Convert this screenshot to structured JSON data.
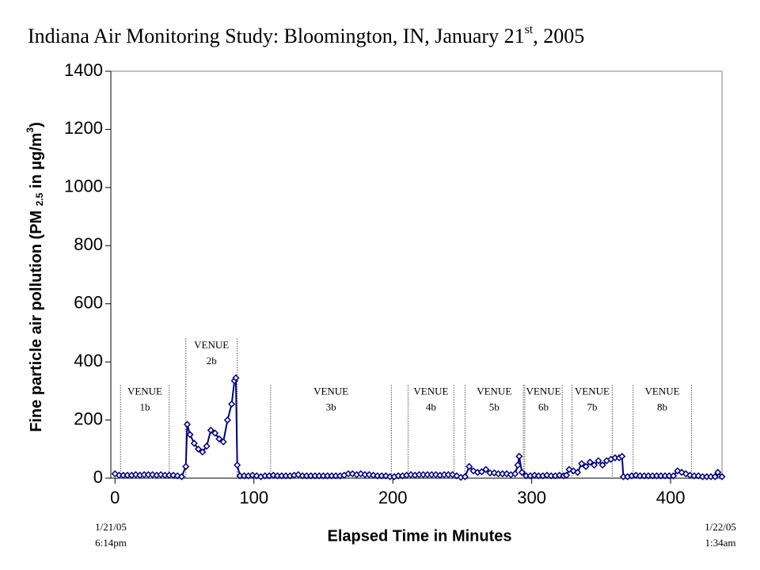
{
  "chart_data": {
    "type": "line",
    "title": [
      "Indiana Air Monitoring Study: Bloomington, IN, January 21",
      "st",
      ", 2005"
    ],
    "xlabel": "Elapsed Time in Minutes",
    "ylabel": [
      "Fine particle air pollution (PM ",
      "2.5",
      " in µg/m",
      "3",
      ")"
    ],
    "start_label": [
      "1/21/05",
      "6:14pm"
    ],
    "end_label": [
      "1/22/05",
      "1:34am"
    ],
    "xlim": [
      -3,
      437
    ],
    "ylim": [
      0,
      1400
    ],
    "xticks": [
      0,
      100,
      200,
      300,
      400
    ],
    "yticks": [
      0,
      200,
      400,
      600,
      800,
      1000,
      1200,
      1400
    ],
    "x": [
      0,
      3,
      6,
      9,
      12,
      15,
      18,
      21,
      24,
      27,
      30,
      33,
      36,
      39,
      42,
      45,
      48,
      51,
      52,
      54,
      57,
      60,
      63,
      66,
      69,
      72,
      75,
      78,
      81,
      84,
      86,
      87,
      88,
      90,
      93,
      96,
      99,
      102,
      105,
      108,
      111,
      114,
      117,
      120,
      123,
      126,
      129,
      132,
      135,
      138,
      141,
      144,
      147,
      150,
      153,
      156,
      159,
      162,
      165,
      168,
      171,
      174,
      177,
      180,
      183,
      186,
      189,
      192,
      195,
      198,
      201,
      204,
      207,
      210,
      213,
      216,
      219,
      222,
      225,
      228,
      231,
      234,
      237,
      240,
      243,
      246,
      249,
      252,
      255,
      258,
      261,
      264,
      267,
      270,
      273,
      276,
      279,
      282,
      285,
      288,
      290,
      291,
      293,
      296,
      299,
      302,
      305,
      308,
      311,
      314,
      317,
      320,
      323,
      325,
      327,
      330,
      333,
      336,
      339,
      342,
      345,
      348,
      351,
      354,
      357,
      360,
      363,
      365,
      366,
      369,
      372,
      375,
      378,
      381,
      384,
      387,
      390,
      393,
      396,
      399,
      402,
      405,
      408,
      411,
      414,
      417,
      420,
      423,
      426,
      429,
      432,
      434,
      437
    ],
    "series": [
      {
        "color": "#000080",
        "values": [
          15,
          10,
          10,
          10,
          10,
          12,
          10,
          12,
          12,
          12,
          10,
          12,
          10,
          10,
          10,
          8,
          5,
          40,
          185,
          150,
          120,
          100,
          90,
          110,
          165,
          155,
          135,
          125,
          200,
          255,
          335,
          345,
          45,
          8,
          8,
          8,
          10,
          8,
          5,
          8,
          8,
          10,
          8,
          8,
          8,
          8,
          10,
          12,
          8,
          8,
          8,
          8,
          8,
          8,
          8,
          8,
          8,
          8,
          10,
          15,
          15,
          12,
          15,
          12,
          12,
          10,
          8,
          8,
          8,
          5,
          5,
          8,
          8,
          10,
          12,
          10,
          12,
          12,
          12,
          12,
          12,
          10,
          12,
          12,
          12,
          8,
          3,
          5,
          40,
          25,
          20,
          22,
          30,
          18,
          18,
          15,
          15,
          15,
          12,
          15,
          45,
          75,
          20,
          8,
          8,
          10,
          8,
          8,
          10,
          8,
          8,
          10,
          8,
          10,
          30,
          25,
          20,
          50,
          40,
          55,
          45,
          60,
          45,
          60,
          65,
          70,
          70,
          75,
          5,
          5,
          8,
          10,
          8,
          8,
          8,
          8,
          8,
          8,
          8,
          8,
          8,
          25,
          20,
          15,
          10,
          8,
          8,
          5,
          5,
          5,
          5,
          20,
          5
        ]
      }
    ],
    "venues": [
      {
        "lines": [
          "VENUE",
          "1b"
        ],
        "start": 4,
        "end": 39,
        "top": 320
      },
      {
        "lines": [
          "VENUE",
          "2b"
        ],
        "start": 51,
        "end": 88,
        "top": 480
      },
      {
        "lines": [
          "VENUE",
          "3b"
        ],
        "start": 112,
        "end": 199,
        "top": 320
      },
      {
        "lines": [
          "VENUE",
          "4b"
        ],
        "start": 211,
        "end": 244,
        "top": 320
      },
      {
        "lines": [
          "VENUE",
          "5b"
        ],
        "start": 252,
        "end": 294,
        "top": 320
      },
      {
        "lines": [
          "VENUE",
          "6b"
        ],
        "start": 295,
        "end": 322,
        "top": 320
      },
      {
        "lines": [
          "VENUE",
          "7b"
        ],
        "start": 329,
        "end": 358,
        "top": 320
      },
      {
        "lines": [
          "VENUE",
          "8b"
        ],
        "start": 373,
        "end": 415,
        "top": 320
      }
    ]
  }
}
